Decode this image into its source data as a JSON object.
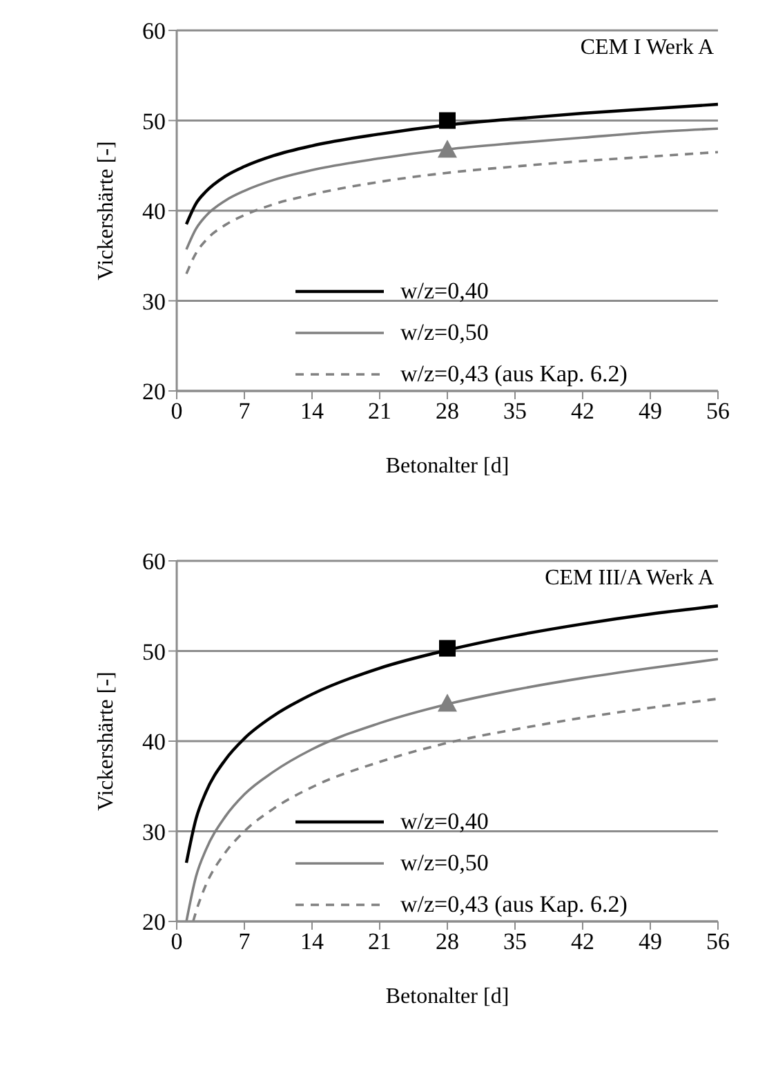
{
  "chart_data": [
    {
      "type": "line",
      "title": "CEM I Werk A",
      "xlabel": "Betonalter [d]",
      "ylabel": "Vickershärte [-]",
      "xlim": [
        0,
        56
      ],
      "xticks": [
        0,
        7,
        14,
        21,
        28,
        35,
        42,
        49,
        56
      ],
      "ylim": [
        20,
        60
      ],
      "yticks": [
        20,
        30,
        40,
        50,
        60
      ],
      "grid": "y",
      "legend": "bottom right",
      "marker": "none",
      "series": [
        {
          "name": "w/z=0,40",
          "color": "#000000",
          "line_style": "solid",
          "x": [
            1,
            2,
            3,
            5,
            7,
            10,
            14,
            21,
            28,
            35,
            42,
            49,
            56
          ],
          "values": [
            38.5,
            40.8,
            42.1,
            43.8,
            44.9,
            46.1,
            47.2,
            48.5,
            49.5,
            50.2,
            50.8,
            51.3,
            51.8
          ]
        },
        {
          "name": "w/z=0,50",
          "color": "#808080",
          "line_style": "solid",
          "x": [
            1,
            2,
            3,
            5,
            7,
            10,
            14,
            21,
            28,
            35,
            42,
            49,
            56
          ],
          "values": [
            35.7,
            38.0,
            39.4,
            41.1,
            42.2,
            43.4,
            44.5,
            45.8,
            46.8,
            47.5,
            48.1,
            48.7,
            49.1
          ]
        },
        {
          "name": "w/z=0,43 (aus Kap. 6.2)",
          "color": "#808080",
          "line_style": "dashed",
          "x": [
            1,
            2,
            3,
            5,
            7,
            10,
            14,
            21,
            28,
            35,
            42,
            49,
            56
          ],
          "values": [
            33.0,
            35.3,
            36.7,
            38.4,
            39.5,
            40.7,
            41.8,
            43.2,
            44.2,
            44.9,
            45.5,
            46.0,
            46.5
          ]
        },
        {
          "type": "scatter",
          "marker": "square",
          "color": "#000000",
          "x": [
            28
          ],
          "values": [
            50.0
          ]
        },
        {
          "type": "scatter",
          "marker": "triangle",
          "color": "#808080",
          "x": [
            28
          ],
          "values": [
            46.8
          ]
        }
      ]
    },
    {
      "type": "line",
      "title": "CEM III/A Werk A",
      "xlabel": "Betonalter [d]",
      "ylabel": "Vickershärte [-]",
      "xlim": [
        0,
        56
      ],
      "xticks": [
        0,
        7,
        14,
        21,
        28,
        35,
        42,
        49,
        56
      ],
      "ylim": [
        20,
        60
      ],
      "yticks": [
        20,
        30,
        40,
        50,
        60
      ],
      "grid": "y",
      "legend": "bottom right",
      "marker": "none",
      "series": [
        {
          "name": "w/z=0,40",
          "color": "#000000",
          "line_style": "solid",
          "x": [
            1,
            2,
            3,
            5,
            7,
            10,
            14,
            21,
            28,
            35,
            42,
            49,
            56
          ],
          "values": [
            26.5,
            31.4,
            34.3,
            37.9,
            40.3,
            42.8,
            45.2,
            48.1,
            50.1,
            51.7,
            53.0,
            54.1,
            55.0
          ]
        },
        {
          "name": "w/z=0,50",
          "color": "#808080",
          "line_style": "solid",
          "x": [
            1,
            2,
            3,
            5,
            7,
            10,
            14,
            21,
            28,
            35,
            42,
            49,
            56
          ],
          "values": [
            20.0,
            25.0,
            27.9,
            31.6,
            34.1,
            36.6,
            39.1,
            42.0,
            44.1,
            45.7,
            47.0,
            48.1,
            49.1
          ]
        },
        {
          "name": "w/z=0,43 (aus Kap. 6.2)",
          "color": "#808080",
          "line_style": "dashed",
          "x": [
            1.7,
            2,
            3,
            5,
            7,
            10,
            14,
            21,
            28,
            35,
            42,
            49,
            56
          ],
          "values": [
            20.0,
            21.1,
            24.0,
            27.6,
            30.0,
            32.5,
            34.9,
            37.7,
            39.8,
            41.3,
            42.6,
            43.7,
            44.7
          ]
        },
        {
          "type": "scatter",
          "marker": "square",
          "color": "#000000",
          "x": [
            28
          ],
          "values": [
            50.3
          ]
        },
        {
          "type": "scatter",
          "marker": "triangle",
          "color": "#808080",
          "x": [
            28
          ],
          "values": [
            44.2
          ]
        }
      ]
    }
  ]
}
